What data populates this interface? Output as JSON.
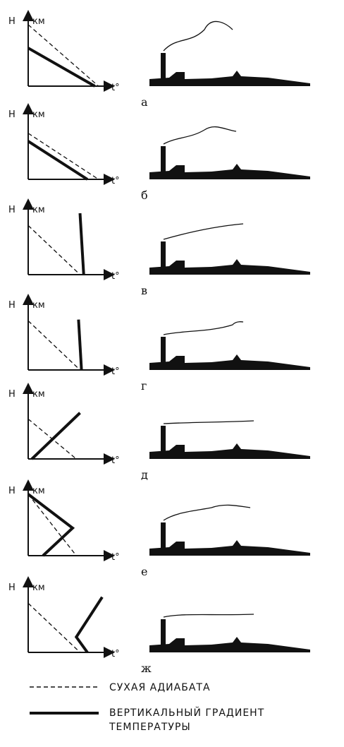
{
  "axis": {
    "y_label": "H",
    "y_unit": "км",
    "x_label": "t°"
  },
  "panels": [
    {
      "letter": "а"
    },
    {
      "letter": "б"
    },
    {
      "letter": "в"
    },
    {
      "letter": "г"
    },
    {
      "letter": "д"
    },
    {
      "letter": "е"
    },
    {
      "letter": "ж"
    }
  ],
  "legend": {
    "dashed_label": "СУХАЯ АДИАБАТА",
    "solid_label_line1": "ВЕРТИКАЛЬНЫЙ ГРАДИЕНТ",
    "solid_label_line2": "ТЕМПЕРАТУРЫ"
  }
}
